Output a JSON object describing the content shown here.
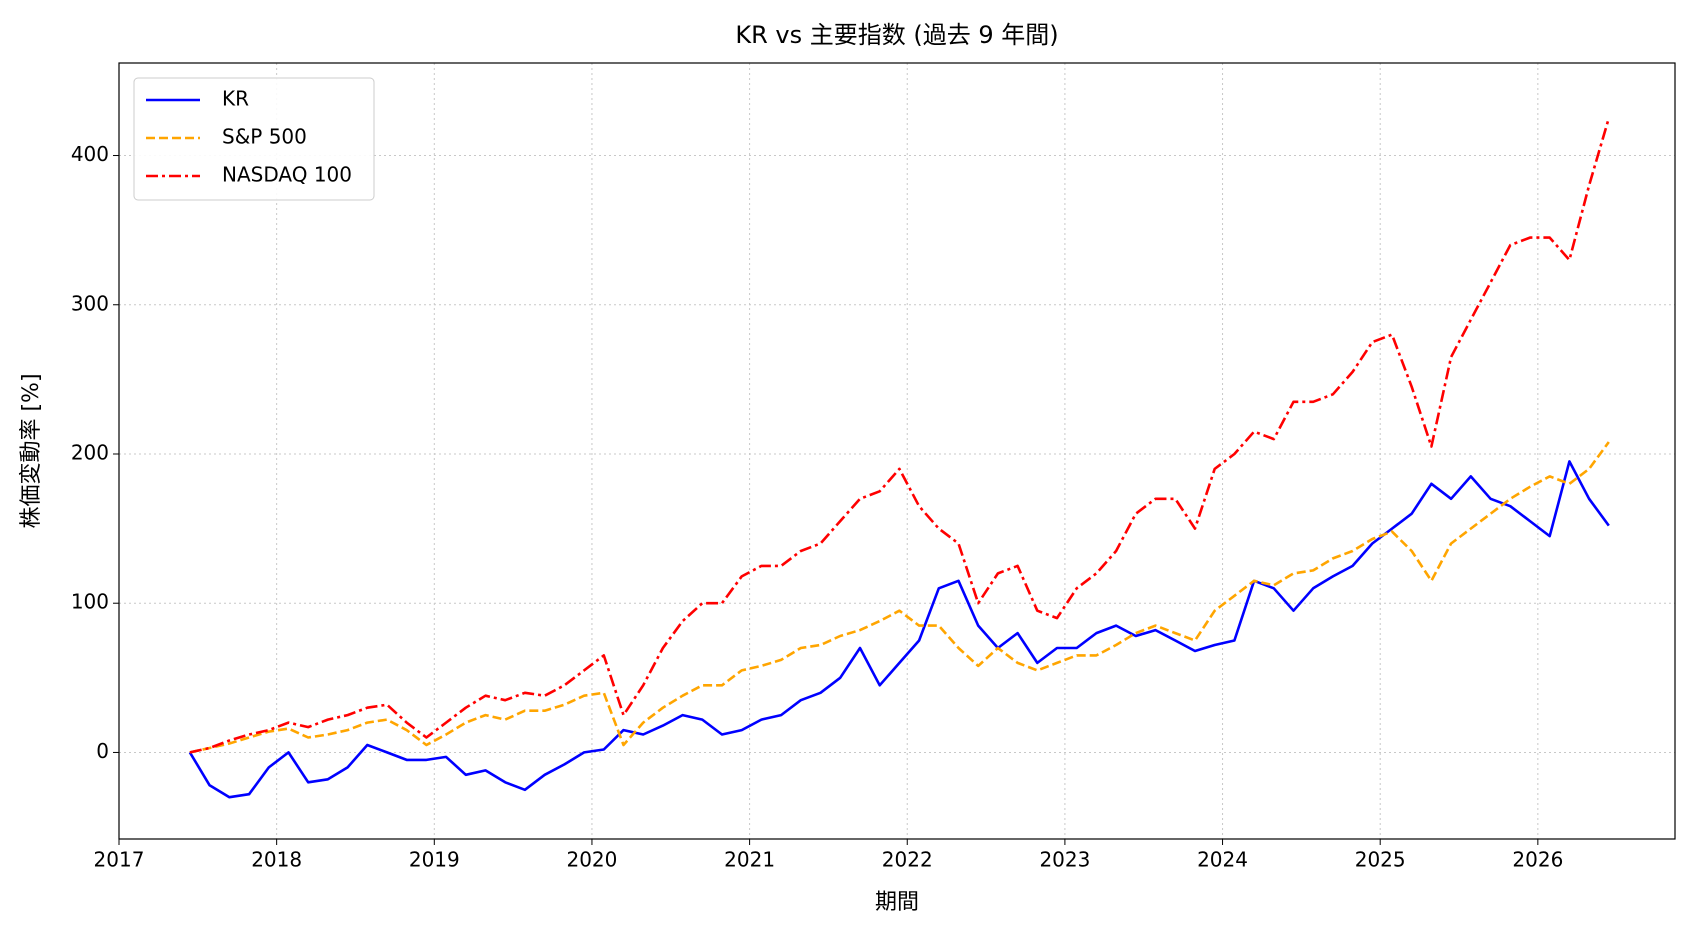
{
  "chart_data": {
    "type": "line",
    "title": "KR vs 主要指数 (過去 9 年間)",
    "xlabel": "期間",
    "ylabel": "株価変動率 [%]",
    "xlim": [
      2017,
      2026.87
    ],
    "ylim": [
      -58,
      462
    ],
    "xticks": [
      2017,
      2018,
      2019,
      2020,
      2021,
      2022,
      2023,
      2024,
      2025,
      2026
    ],
    "yticks": [
      0,
      100,
      200,
      300,
      400
    ],
    "grid": true,
    "legend": "upper left",
    "x": [
      2017.45,
      2017.575,
      2017.7,
      2017.825,
      2017.95,
      2018.075,
      2018.2,
      2018.325,
      2018.45,
      2018.575,
      2018.7,
      2018.825,
      2018.95,
      2019.075,
      2019.2,
      2019.325,
      2019.45,
      2019.575,
      2019.7,
      2019.825,
      2019.95,
      2020.075,
      2020.2,
      2020.325,
      2020.45,
      2020.575,
      2020.7,
      2020.825,
      2020.95,
      2021.075,
      2021.2,
      2021.325,
      2021.45,
      2021.575,
      2021.7,
      2021.825,
      2021.95,
      2022.075,
      2022.2,
      2022.325,
      2022.45,
      2022.575,
      2022.7,
      2022.825,
      2022.95,
      2023.075,
      2023.2,
      2023.325,
      2023.45,
      2023.575,
      2023.7,
      2023.825,
      2023.95,
      2024.075,
      2024.2,
      2024.325,
      2024.45,
      2024.575,
      2024.7,
      2024.825,
      2024.95,
      2025.075,
      2025.2,
      2025.325,
      2025.45,
      2025.575,
      2025.7,
      2025.825,
      2025.95,
      2026.075,
      2026.2,
      2026.325,
      2026.45
    ],
    "series": [
      {
        "name": "KR",
        "color": "#0000ff",
        "linestyle": "solid",
        "values": [
          0,
          -22,
          -30,
          -28,
          -10,
          0,
          -20,
          -18,
          -10,
          5,
          0,
          -5,
          -5,
          -3,
          -15,
          -12,
          -20,
          -25,
          -15,
          -8,
          0,
          2,
          15,
          12,
          18,
          25,
          22,
          12,
          15,
          22,
          25,
          35,
          40,
          50,
          70,
          45,
          60,
          75,
          110,
          115,
          85,
          70,
          80,
          60,
          70,
          70,
          80,
          85,
          78,
          82,
          75,
          68,
          72,
          75,
          115,
          110,
          95,
          110,
          118,
          125,
          140,
          150,
          160,
          180,
          170,
          185,
          170,
          165,
          155,
          145,
          195,
          170,
          152
        ]
      },
      {
        "name": "S&P 500",
        "color": "#ffa500",
        "linestyle": "dashed",
        "values": [
          0,
          3,
          6,
          10,
          14,
          16,
          10,
          12,
          15,
          20,
          22,
          15,
          5,
          12,
          20,
          25,
          22,
          28,
          28,
          32,
          38,
          40,
          5,
          20,
          30,
          38,
          45,
          45,
          55,
          58,
          62,
          70,
          72,
          78,
          82,
          88,
          95,
          85,
          85,
          70,
          58,
          70,
          60,
          55,
          60,
          65,
          65,
          72,
          80,
          85,
          80,
          75,
          95,
          105,
          115,
          112,
          120,
          122,
          130,
          135,
          143,
          148,
          135,
          115,
          140,
          150,
          160,
          170,
          178,
          185,
          180,
          190,
          208
        ]
      },
      {
        "name": "NASDAQ 100",
        "color": "#ff0000",
        "linestyle": "dashdot",
        "values": [
          0,
          3,
          8,
          12,
          15,
          20,
          17,
          22,
          25,
          30,
          32,
          20,
          10,
          20,
          30,
          38,
          35,
          40,
          38,
          45,
          55,
          65,
          25,
          45,
          70,
          88,
          100,
          100,
          118,
          125,
          125,
          135,
          140,
          155,
          170,
          175,
          190,
          165,
          150,
          140,
          100,
          120,
          125,
          95,
          90,
          110,
          120,
          135,
          160,
          170,
          170,
          150,
          190,
          200,
          215,
          210,
          235,
          235,
          240,
          255,
          275,
          280,
          245,
          205,
          265,
          290,
          315,
          340,
          345,
          345,
          330,
          380,
          425
        ]
      }
    ]
  }
}
